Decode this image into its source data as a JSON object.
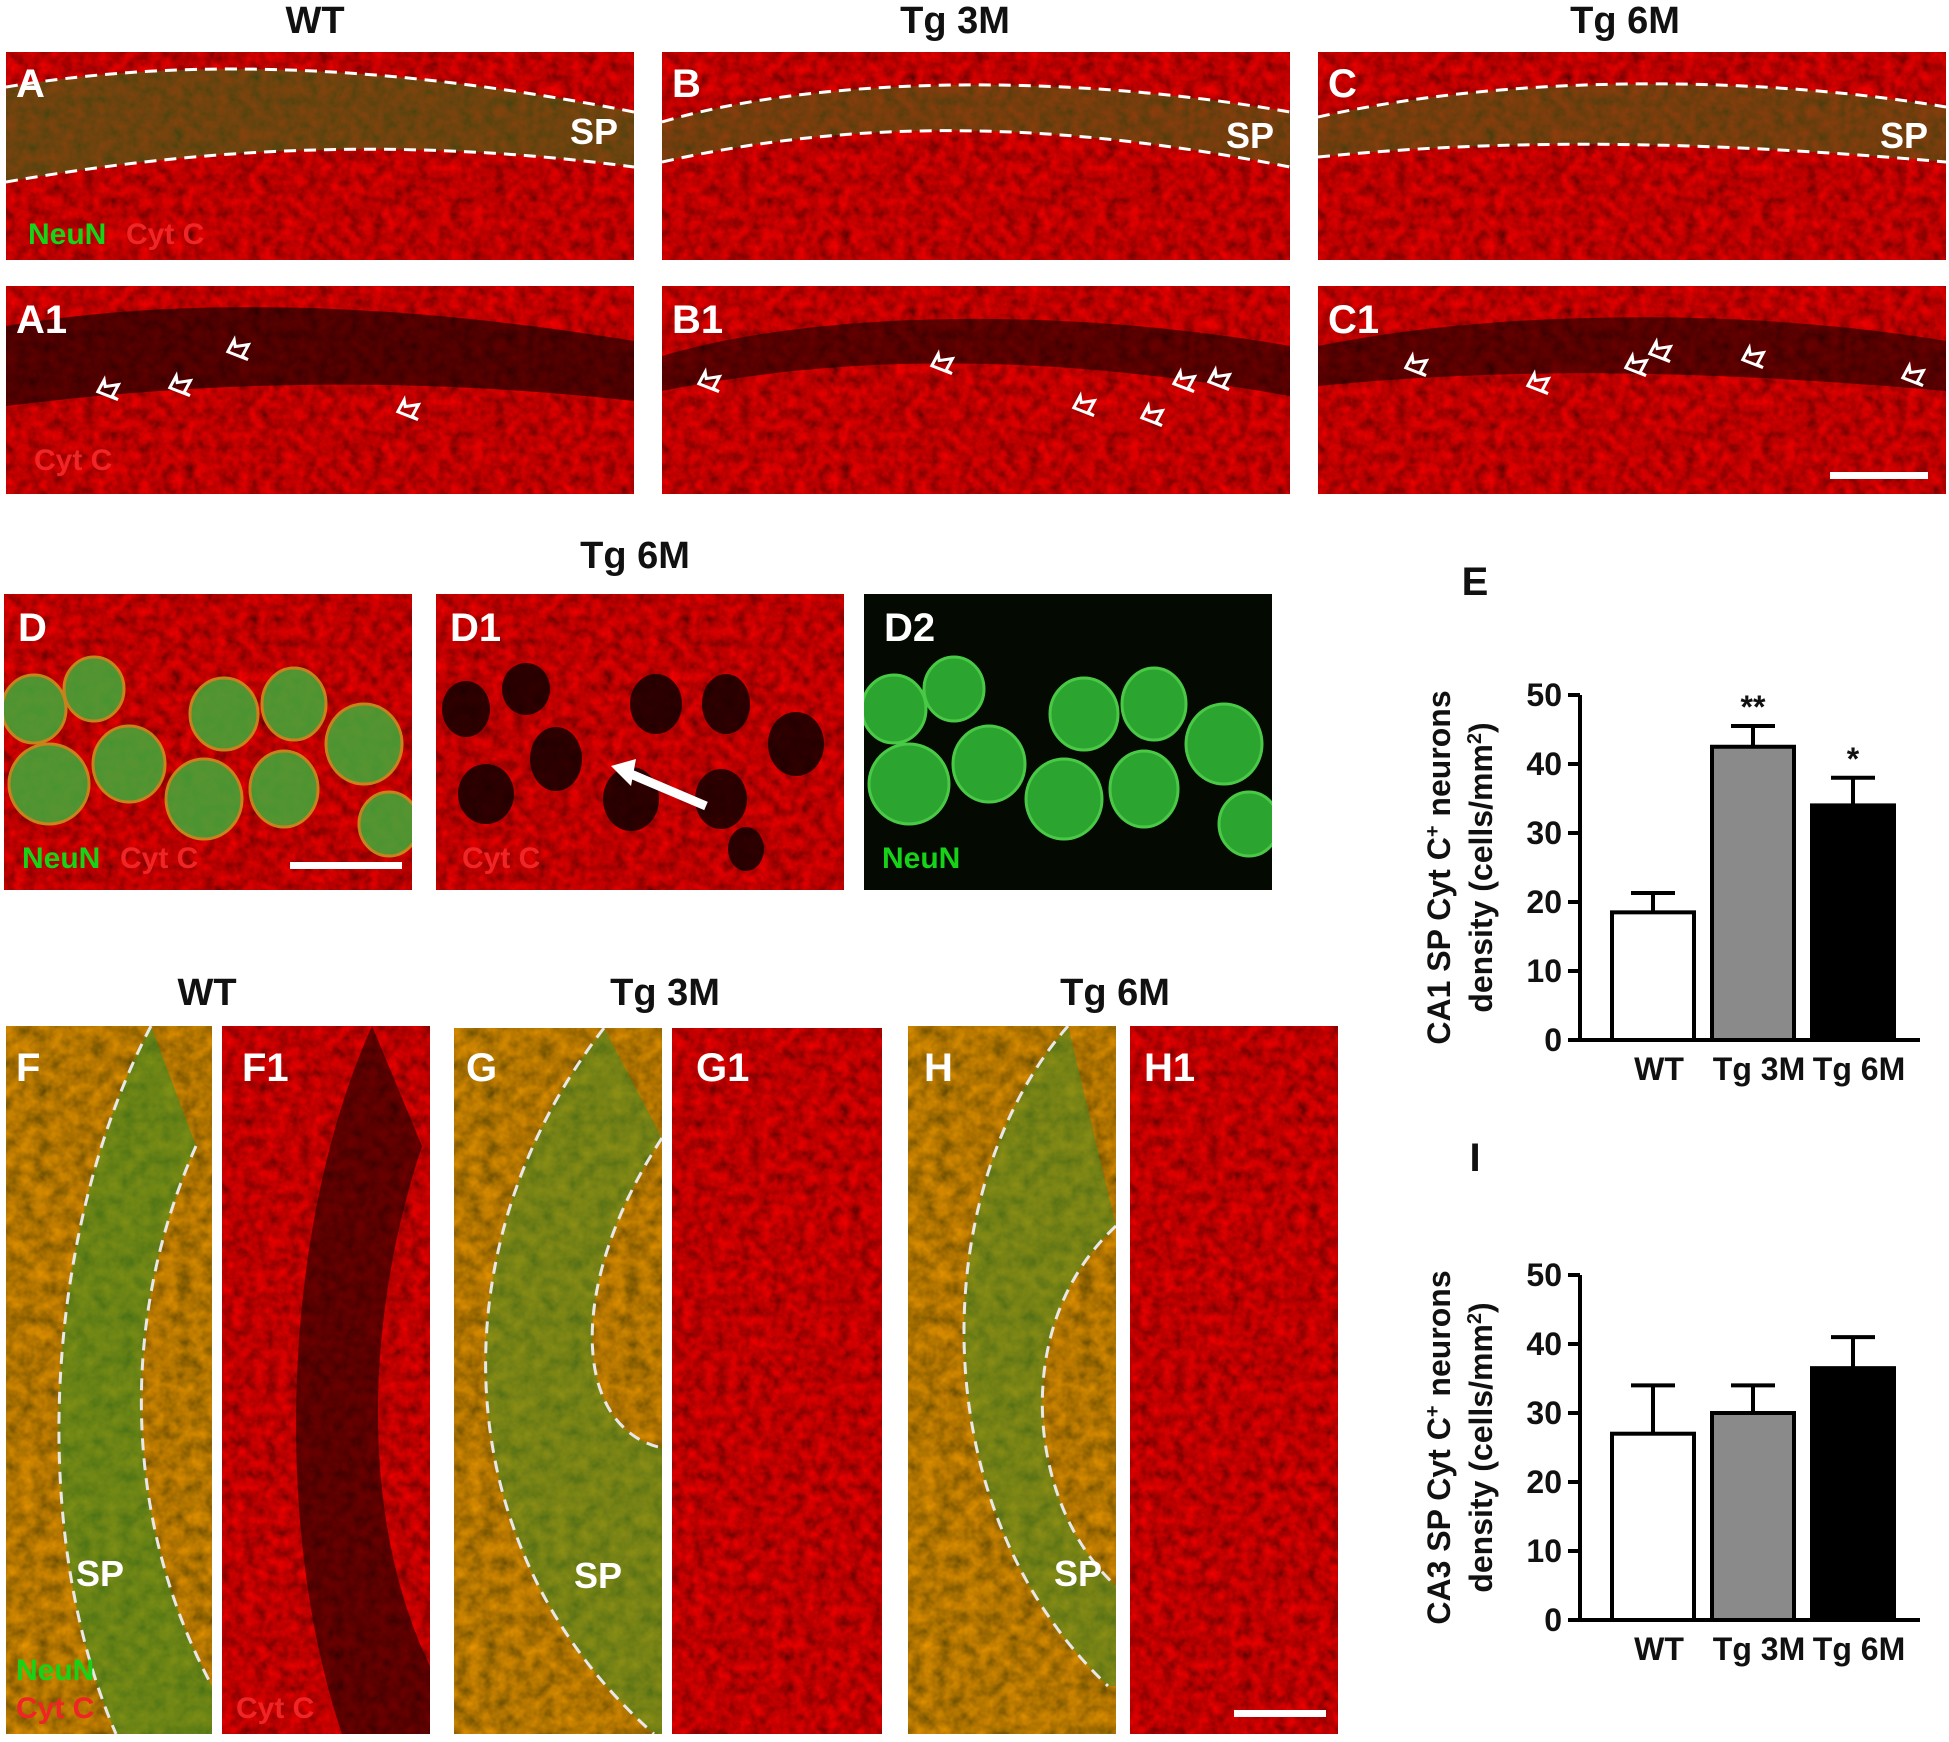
{
  "top_row": {
    "titles": [
      "WT",
      "Tg 3M",
      "Tg 6M"
    ],
    "merged_labels": [
      "A",
      "B",
      "C"
    ],
    "single_labels": [
      "A1",
      "B1",
      "C1"
    ],
    "region_label": "SP",
    "legend_neun": "NeuN",
    "legend_cytc": "Cyt C"
  },
  "middle_row": {
    "title": "Tg 6M",
    "labels": [
      "D",
      "D1",
      "D2"
    ],
    "legend_neun": "NeuN",
    "legend_cytc": "Cyt C"
  },
  "bottom_row": {
    "titles": [
      "WT",
      "Tg 3M",
      "Tg 6M"
    ],
    "labels": [
      "F",
      "F1",
      "G",
      "G1",
      "H",
      "H1"
    ],
    "region_label": "SP",
    "legend_neun": "NeuN",
    "legend_cytc": "Cyt C"
  },
  "colors": {
    "red_stain": "#c01212",
    "green_stain": "#1fbf2a",
    "bar_wt": "#ffffff",
    "bar_tg3m": "#8a8a8a",
    "bar_tg6m": "#000000"
  },
  "chart_data": [
    {
      "type": "bar",
      "panel": "E",
      "categories": [
        "WT",
        "Tg 3M",
        "Tg 6M"
      ],
      "values": [
        18.5,
        42.5,
        34
      ],
      "errors": [
        2.8,
        3,
        4
      ],
      "significance": [
        "",
        "**",
        "*"
      ],
      "ylabel_line1": "CA1 SP Cyt C",
      "ylabel_sup": "+",
      "ylabel_line1_end": " neurons",
      "ylabel_line2": "density (cells/mm",
      "ylabel_sup2": "2",
      "ylabel_line2_end": ")",
      "ylim": [
        0,
        50
      ],
      "yticks": [
        "0",
        "10",
        "20",
        "30",
        "40",
        "50"
      ]
    },
    {
      "type": "bar",
      "panel": "I",
      "categories": [
        "WT",
        "Tg 3M",
        "Tg 6M"
      ],
      "values": [
        27,
        30,
        36.5
      ],
      "errors": [
        7,
        4,
        4.5
      ],
      "significance": [
        "",
        "",
        ""
      ],
      "ylabel_line1": "CA3 SP Cyt C",
      "ylabel_sup": "+",
      "ylabel_line1_end": " neurons",
      "ylabel_line2": "density (cells/mm",
      "ylabel_sup2": "2",
      "ylabel_line2_end": ")",
      "ylim": [
        0,
        50
      ],
      "yticks": [
        "0",
        "10",
        "20",
        "30",
        "40",
        "50"
      ]
    }
  ]
}
